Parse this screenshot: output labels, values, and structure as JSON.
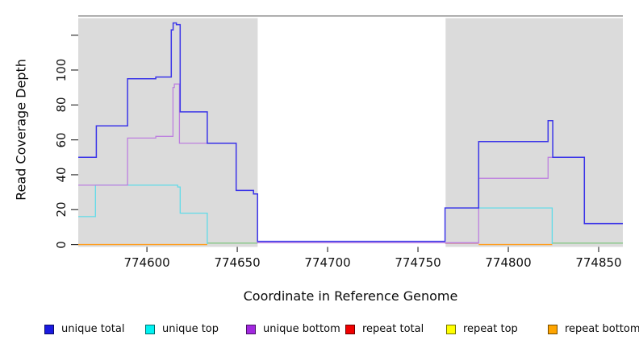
{
  "chart_data": {
    "type": "line",
    "subtype": "step",
    "title": "",
    "xlabel": "Coordinate in Reference Genome",
    "ylabel": "Read Coverage Depth",
    "x_range": [
      774562,
      774863.4
    ],
    "y_range": [
      0,
      132.6
    ],
    "grid": false,
    "x_ticks": [
      774600,
      774650,
      774700,
      774750,
      774800,
      774850
    ],
    "y_ticks": [
      {
        "v": 0,
        "label": "0"
      },
      {
        "v": 20,
        "label": "20"
      },
      {
        "v": 40,
        "label": "40"
      },
      {
        "v": 60,
        "label": "60"
      },
      {
        "v": 80,
        "label": "80"
      },
      {
        "v": 100,
        "label": "100"
      },
      {
        "v": 120,
        "label": ""
      }
    ],
    "shaded_regions": [
      {
        "x1": 774562,
        "x2": 774661.3,
        "color": "#DBDBDB"
      },
      {
        "x1": 774765.3,
        "x2": 774863.4,
        "color": "#DBDBDB"
      }
    ],
    "series": [
      {
        "name": "unique top",
        "color": "#60DBE8",
        "width": 1.3,
        "break_at_zero": true,
        "points": [
          [
            774562,
            16
          ],
          [
            774571.5,
            34
          ],
          [
            774617,
            33
          ],
          [
            774618.4,
            18
          ],
          [
            774633.4,
            0
          ],
          [
            774765,
            21
          ],
          [
            774824.3,
            0
          ]
        ],
        "x_end": 774863.4
      },
      {
        "name": "unique bottom",
        "color": "#BD80DF",
        "width": 1.3,
        "break_at_zero": false,
        "points": [
          [
            774562,
            34
          ],
          [
            774589.3,
            61
          ],
          [
            774604.9,
            62
          ],
          [
            774614.4,
            90
          ],
          [
            774615.2,
            92
          ],
          [
            774618,
            58
          ],
          [
            774649.4,
            31
          ],
          [
            774659,
            29
          ],
          [
            774661.2,
            0
          ],
          [
            774783.6,
            38
          ],
          [
            774822,
            50
          ],
          [
            774842.1,
            12
          ]
        ],
        "x_end": 774863.4
      },
      {
        "name": "unique total",
        "color": "#3B35E8",
        "width": 1.5,
        "break_at_zero": false,
        "points": [
          [
            774562,
            50
          ],
          [
            774572,
            68
          ],
          [
            774589.3,
            95
          ],
          [
            774604.9,
            96
          ],
          [
            774613.5,
            123
          ],
          [
            774614.5,
            127
          ],
          [
            774616.3,
            126
          ],
          [
            774618.4,
            76
          ],
          [
            774633.4,
            58
          ],
          [
            774649.4,
            31
          ],
          [
            774659,
            29
          ],
          [
            774661.2,
            0
          ],
          [
            774765,
            21
          ],
          [
            774783.6,
            59
          ],
          [
            774822,
            71
          ],
          [
            774824.6,
            50
          ],
          [
            774842.1,
            12
          ]
        ],
        "x_end": 774863.4
      },
      {
        "name": "repeat total",
        "color": "#E01414",
        "width": 1.3,
        "draw": false,
        "points": [
          [
            774562,
            0
          ]
        ],
        "x_end": 774863.4
      },
      {
        "name": "repeat top",
        "color": "#F5E800",
        "width": 1.3,
        "draw": false,
        "points": [
          [
            774562,
            0
          ]
        ],
        "x_end": 774863.4
      },
      {
        "name": "repeat bottom",
        "color": "#FF9D1E",
        "width": 1.3,
        "draw": false,
        "points": [
          [
            774562,
            0
          ]
        ],
        "x_end": 774863.4
      }
    ],
    "zero_line_segments": [
      {
        "x1": 774562,
        "x2": 774633.4,
        "color": "#FF9D1E",
        "dy": 0
      },
      {
        "x1": 774633.4,
        "x2": 774661.2,
        "color": "#85C785",
        "dy": -1.8
      },
      {
        "x1": 774765,
        "x2": 774783.6,
        "color": "#C7607A",
        "dy": -1.8
      },
      {
        "x1": 774783.6,
        "x2": 774824.3,
        "color": "#FF9D1E",
        "dy": 0
      },
      {
        "x1": 774824.3,
        "x2": 774863.4,
        "color": "#85C785",
        "dy": -1.8
      }
    ],
    "box_top_color": "#999999",
    "tick_color": "#333333"
  },
  "legend": {
    "items": [
      {
        "label": "unique total",
        "color": "#1A1AE0"
      },
      {
        "label": "unique top",
        "color": "#00F2F2"
      },
      {
        "label": "unique bottom",
        "color": "#A228E0"
      },
      {
        "label": "repeat total",
        "color": "#F00000"
      },
      {
        "label": "repeat top",
        "color": "#FFFF00"
      },
      {
        "label": "repeat bottom",
        "color": "#FFA500"
      }
    ]
  }
}
